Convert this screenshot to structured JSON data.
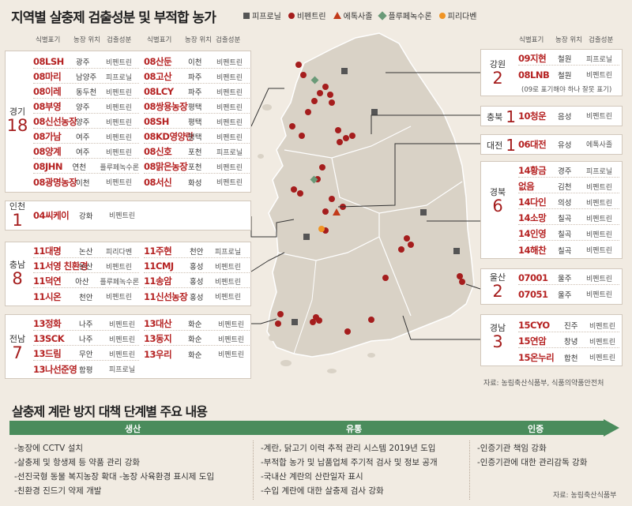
{
  "title": "지역별 살충제 검출성분 및 부적합 농가",
  "legend": [
    {
      "label": "피프로닐",
      "shape": "square",
      "color": "#555555"
    },
    {
      "label": "비펜트린",
      "shape": "circle",
      "color": "#a51d1d"
    },
    {
      "label": "에톡사졸",
      "shape": "triangle",
      "color": "#c23a1a"
    },
    {
      "label": "플루페녹수론",
      "shape": "diamond",
      "color": "#6a9a78"
    },
    {
      "label": "피리다벤",
      "shape": "circle",
      "color": "#f09424"
    }
  ],
  "col_headers": {
    "id": "식별표기",
    "loc": "농장 위치",
    "comp": "검출성분"
  },
  "regions": {
    "gyeonggi": {
      "name": "경기",
      "count": "18",
      "farms": [
        {
          "id": "08LSH",
          "loc": "광주",
          "comp": "비펜트린"
        },
        {
          "id": "08마리",
          "loc": "남양주",
          "comp": "피프로닐"
        },
        {
          "id": "08이레",
          "loc": "동두천",
          "comp": "비펜트린"
        },
        {
          "id": "08부영",
          "loc": "양주",
          "comp": "비펜트린"
        },
        {
          "id": "08신선농장",
          "loc": "양주",
          "comp": "비펜트린"
        },
        {
          "id": "08가남",
          "loc": "여주",
          "comp": "비펜트린"
        },
        {
          "id": "08양계",
          "loc": "여주",
          "comp": "비펜트린"
        },
        {
          "id": "08JHN",
          "loc": "연천",
          "comp": "플루페녹수론"
        },
        {
          "id": "08광명농장",
          "loc": "이천",
          "comp": "비펜트린"
        },
        {
          "id": "08산둔",
          "loc": "이천",
          "comp": "비펜트린"
        },
        {
          "id": "08고산",
          "loc": "파주",
          "comp": "비펜트린"
        },
        {
          "id": "08LCY",
          "loc": "파주",
          "comp": "비펜트린"
        },
        {
          "id": "08쌍용농장",
          "loc": "평택",
          "comp": "비펜트린"
        },
        {
          "id": "08SH",
          "loc": "평택",
          "comp": "비펜트린"
        },
        {
          "id": "08KD영양란",
          "loc": "평택",
          "comp": "비펜트린"
        },
        {
          "id": "08신호",
          "loc": "포천",
          "comp": "피프로닐"
        },
        {
          "id": "08맑은농장",
          "loc": "포천",
          "comp": "비펜트린"
        },
        {
          "id": "08서신",
          "loc": "화성",
          "comp": "비펜트린"
        }
      ]
    },
    "incheon": {
      "name": "인천",
      "count": "1",
      "farms": [
        {
          "id": "04씨케이",
          "loc": "강화",
          "comp": "비펜트린"
        }
      ]
    },
    "chungnam": {
      "name": "충남",
      "count": "8",
      "farms": [
        {
          "id": "11대명",
          "loc": "논산",
          "comp": "피리다벤"
        },
        {
          "id": "11서영 친환경",
          "loc": "논산",
          "comp": "비펜트린"
        },
        {
          "id": "11덕연",
          "loc": "아산",
          "comp": "플루페녹수론"
        },
        {
          "id": "11시온",
          "loc": "천안",
          "comp": "비펜트린"
        },
        {
          "id": "11주현",
          "loc": "천안",
          "comp": "피프로닐"
        },
        {
          "id": "11CMJ",
          "loc": "홍성",
          "comp": "비펜트린"
        },
        {
          "id": "11송암",
          "loc": "홍성",
          "comp": "비펜트린"
        },
        {
          "id": "11신선농장",
          "loc": "홍성",
          "comp": "비펜트린"
        }
      ]
    },
    "jeonnam": {
      "name": "전남",
      "count": "7",
      "farms": [
        {
          "id": "13정화",
          "loc": "나주",
          "comp": "비펜트린"
        },
        {
          "id": "13SCK",
          "loc": "나주",
          "comp": "비펜트린"
        },
        {
          "id": "13드림",
          "loc": "무안",
          "comp": "비펜트린"
        },
        {
          "id": "13나선준영",
          "loc": "함평",
          "comp": "피프로닐"
        },
        {
          "id": "13대산",
          "loc": "화순",
          "comp": "비펜트린"
        },
        {
          "id": "13동지",
          "loc": "화순",
          "comp": "비펜트린"
        },
        {
          "id": "13우리",
          "loc": "화순",
          "comp": "비펜트린"
        }
      ]
    },
    "gangwon": {
      "name": "강원",
      "count": "2",
      "farms": [
        {
          "id": "09지현",
          "loc": "철원",
          "comp": "피프로닐"
        },
        {
          "id": "08LNB",
          "loc": "철원",
          "comp": "비펜트린"
        }
      ],
      "note": "(09로 표기해야 하나 잘못 표기)"
    },
    "chungbuk": {
      "name": "충북",
      "count": "1",
      "farms": [
        {
          "id": "10청운",
          "loc": "음성",
          "comp": "비펜트린"
        }
      ]
    },
    "daejeon": {
      "name": "대전",
      "count": "1",
      "farms": [
        {
          "id": "06대전",
          "loc": "유성",
          "comp": "에톡사졸"
        }
      ]
    },
    "gyeongbuk": {
      "name": "경북",
      "count": "6",
      "farms": [
        {
          "id": "14황금",
          "loc": "경주",
          "comp": "피프로닐"
        },
        {
          "id": "없음",
          "loc": "김천",
          "comp": "비펜트린"
        },
        {
          "id": "14다인",
          "loc": "의성",
          "comp": "비펜트린"
        },
        {
          "id": "14소망",
          "loc": "칠곡",
          "comp": "비펜트린"
        },
        {
          "id": "14인영",
          "loc": "칠곡",
          "comp": "비펜트린"
        },
        {
          "id": "14해찬",
          "loc": "칠곡",
          "comp": "비펜트린"
        }
      ]
    },
    "ulsan": {
      "name": "울산",
      "count": "2",
      "farms": [
        {
          "id": "07001",
          "loc": "울주",
          "comp": "비펜트린"
        },
        {
          "id": "07051",
          "loc": "울주",
          "comp": "비펜트린"
        }
      ]
    },
    "gyeongnam": {
      "name": "경남",
      "count": "3",
      "farms": [
        {
          "id": "15CYO",
          "loc": "진주",
          "comp": "비펜트린"
        },
        {
          "id": "15연암",
          "loc": "창녕",
          "comp": "비펜트린"
        },
        {
          "id": "15온누리",
          "loc": "합천",
          "comp": "비펜트린"
        }
      ]
    }
  },
  "source_map": "자료: 농림축산식품부, 식품의약품안전처",
  "section2_title": "살충제 계란 방지 대책 단계별 주요 내용",
  "stages": [
    {
      "label": "생산",
      "items": [
        "-농장에 CCTV 설치",
        "-살충제 및 항생제 등 약품 관리 강화",
        "-선진국형 동물 복지농장 확대 -농장 사육환경 표시제 도입",
        "-친환경 진드기 약제 개발"
      ]
    },
    {
      "label": "유통",
      "items": [
        "-계란, 닭고기 이력 추적 관리 시스템 2019년 도입",
        "-부적합 농가 및 납품업체 주기적 검사 및 정보 공개",
        "-국내산 계란의 산란일자 표시",
        "-수입 계란에 대한 살충제 검사 강화"
      ]
    },
    {
      "label": "인증",
      "items": [
        "-인증기관 책임 강화",
        "-인증기관에 대한 관리감독 강화"
      ]
    }
  ],
  "source_bottom": "자료: 농림축산식품부",
  "colors": {
    "accent_red": "#a51d1d",
    "arrow_green": "#4a8c5c",
    "map_land": "#d9d2c6"
  }
}
